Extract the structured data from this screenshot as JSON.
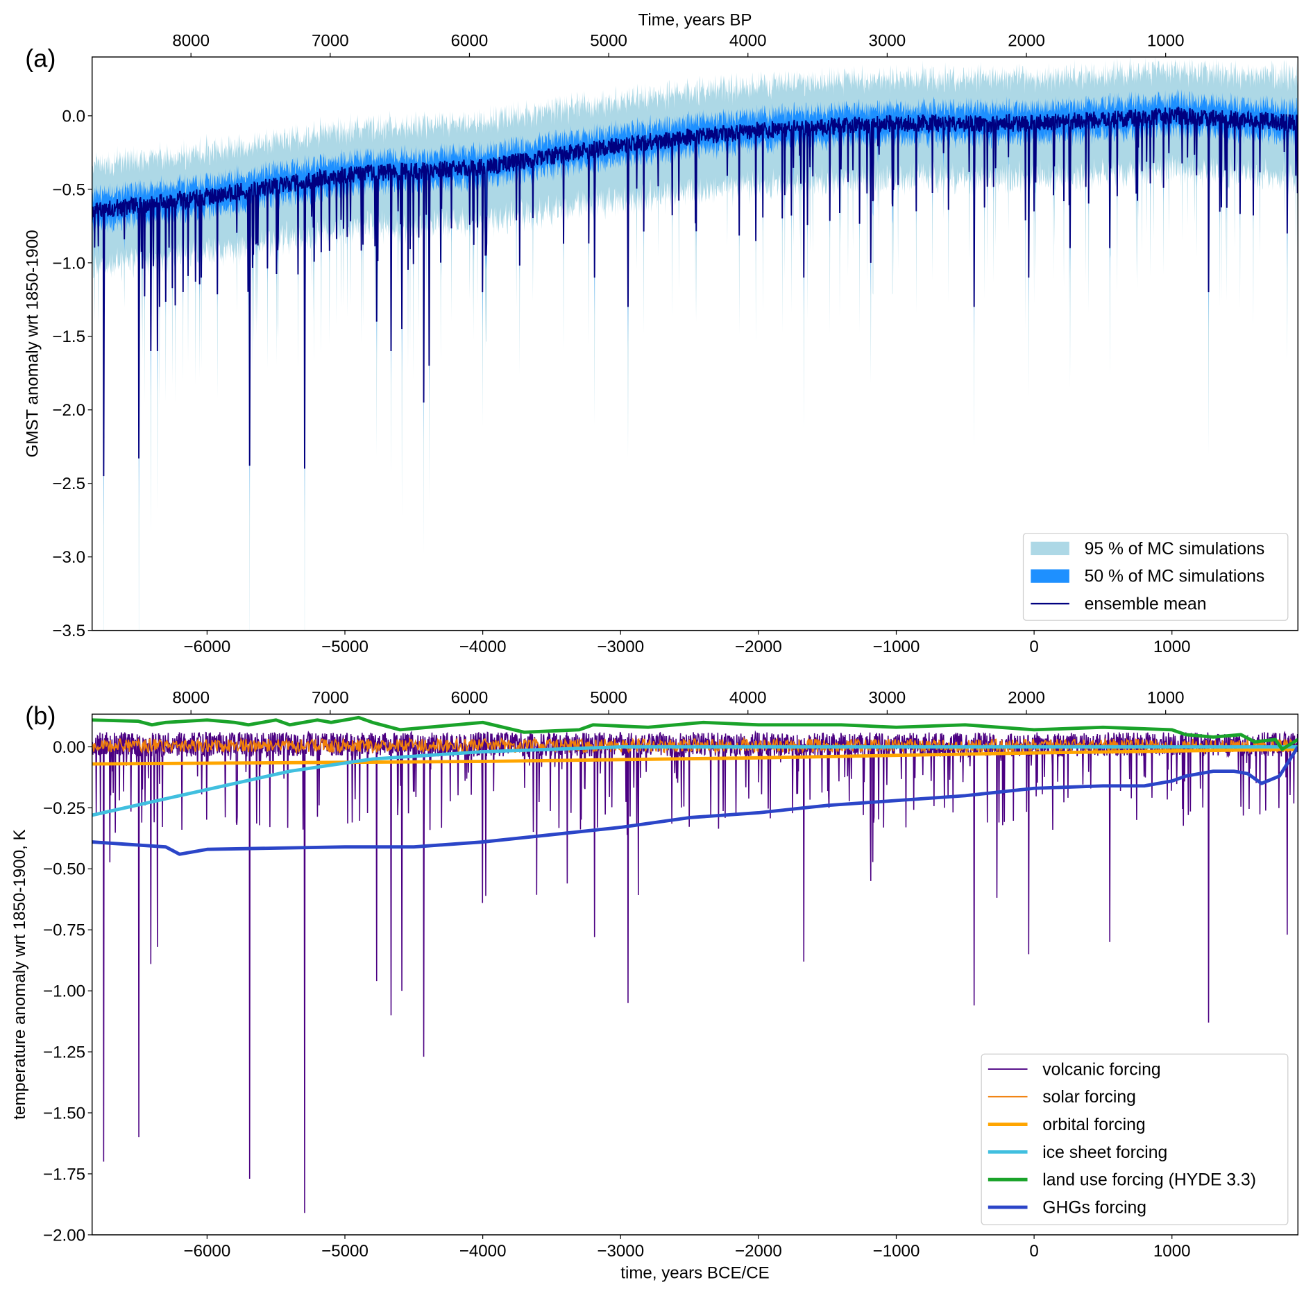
{
  "chart_data": [
    {
      "panel_label": "(a)",
      "type": "area",
      "top_xlabel": "Time, years BP",
      "xlabel": "",
      "ylabel": "GMST anomaly wrt 1850-1900",
      "xlim": [
        -6834,
        1914
      ],
      "xlim_bp": [
        8710,
        50
      ],
      "ylim": [
        -3.5,
        0.4
      ],
      "xticks": [
        -6000,
        -5000,
        -4000,
        -3000,
        -2000,
        -1000,
        0,
        1000
      ],
      "xticks_bp": [
        8000,
        7000,
        6000,
        5000,
        4000,
        3000,
        2000,
        1000
      ],
      "yticks": [
        0.0,
        -0.5,
        -1.0,
        -1.5,
        -2.0,
        -2.5,
        -3.0,
        -3.5
      ],
      "ytick_decimals": 1,
      "legend_position": "lower-right",
      "series": [
        {
          "name": "95 % of MC simulations",
          "kind": "band95",
          "color": "#add8e6",
          "half_width_upper": 0.3,
          "half_width_lower": 0.3
        },
        {
          "name": "50 % of MC simulations",
          "kind": "band50",
          "color": "#1e90ff",
          "half_width": 0.1
        },
        {
          "name": "ensemble mean",
          "kind": "line",
          "color": "#000080"
        }
      ],
      "mean_trend": {
        "x": [
          -6834,
          -6000,
          -5000,
          -4000,
          -3000,
          -2000,
          -1000,
          0,
          1000,
          1914
        ],
        "y": [
          -0.65,
          -0.55,
          -0.4,
          -0.35,
          -0.2,
          -0.1,
          -0.05,
          -0.05,
          0.0,
          -0.05
        ]
      },
      "major_dips": [
        {
          "year": -6750,
          "mean": -2.45,
          "low95": -3.5
        },
        {
          "year": -6495,
          "mean": -2.33,
          "low95": -3.45
        },
        {
          "year": -6410,
          "mean": -1.6,
          "low95": -2.45
        },
        {
          "year": -6360,
          "mean": -1.6,
          "low95": -2.3
        },
        {
          "year": -5693,
          "mean": -2.38,
          "low95": -3.4
        },
        {
          "year": -5292,
          "mean": -2.4,
          "low95": -3.5
        },
        {
          "year": -4770,
          "mean": -1.4,
          "low95": -1.9
        },
        {
          "year": -4666,
          "mean": -1.6,
          "low95": -2.15
        },
        {
          "year": -4587,
          "mean": -1.45,
          "low95": -2.35
        },
        {
          "year": -4430,
          "mean": -1.95,
          "low95": -2.57
        },
        {
          "year": -4390,
          "mean": -1.7,
          "low95": -2.2
        },
        {
          "year": -4003,
          "mean": -1.2,
          "low95": -1.8
        },
        {
          "year": -3190,
          "mean": -1.1,
          "low95": -1.68
        },
        {
          "year": -2947,
          "mean": -1.3,
          "low95": -2.0
        },
        {
          "year": -1671,
          "mean": -1.1,
          "low95": -1.77
        },
        {
          "year": -1185,
          "mean": -1.0,
          "low95": -1.5
        },
        {
          "year": -437,
          "mean": -1.3,
          "low95": -1.87
        },
        {
          "year": -40,
          "mean": -1.1,
          "low95": -1.57
        },
        {
          "year": 260,
          "mean": -0.9,
          "low95": -1.4
        },
        {
          "year": 547,
          "mean": -0.9,
          "low95": -1.4
        },
        {
          "year": 1264,
          "mean": -1.2,
          "low95": -1.87
        },
        {
          "year": 1835,
          "mean": -0.8,
          "low95": -1.3
        }
      ]
    },
    {
      "panel_label": "(b)",
      "type": "line",
      "top_xlabel": "",
      "xlabel": "time, years BCE/CE",
      "ylabel": "temperature anomaly wrt 1850-1900, K",
      "xlim": [
        -6834,
        1914
      ],
      "xlim_bp": [
        8710,
        50
      ],
      "ylim": [
        -2.0,
        0.134
      ],
      "xticks": [
        -6000,
        -5000,
        -4000,
        -3000,
        -2000,
        -1000,
        0,
        1000
      ],
      "xticks_bp": [
        8000,
        7000,
        6000,
        5000,
        4000,
        3000,
        2000,
        1000
      ],
      "yticks": [
        0.0,
        -0.25,
        -0.5,
        -0.75,
        -1.0,
        -1.25,
        -1.5,
        -1.75,
        -2.0
      ],
      "ytick_decimals": 2,
      "legend_position": "lower-right",
      "series": [
        {
          "name": "volcanic forcing",
          "color": "#4b0082",
          "width": 1.5,
          "dips": [
            {
              "year": -6750,
              "value": -1.7
            },
            {
              "year": -6495,
              "value": -1.6
            },
            {
              "year": -6410,
              "value": -0.89
            },
            {
              "year": -6360,
              "value": -0.82
            },
            {
              "year": -5693,
              "value": -1.77
            },
            {
              "year": -5292,
              "value": -1.91
            },
            {
              "year": -4770,
              "value": -0.96
            },
            {
              "year": -4666,
              "value": -1.1
            },
            {
              "year": -4587,
              "value": -1.0
            },
            {
              "year": -4430,
              "value": -1.27
            },
            {
              "year": -4003,
              "value": -0.64
            },
            {
              "year": -3190,
              "value": -0.78
            },
            {
              "year": -2947,
              "value": -1.05
            },
            {
              "year": -1671,
              "value": -0.88
            },
            {
              "year": -1185,
              "value": -0.55
            },
            {
              "year": -437,
              "value": -1.06
            },
            {
              "year": -40,
              "value": -0.85
            },
            {
              "year": 547,
              "value": -0.8
            },
            {
              "year": 1264,
              "value": -1.13
            },
            {
              "year": 1835,
              "value": -0.77
            }
          ]
        },
        {
          "name": "solar forcing",
          "color": "#f07f0a",
          "width": 1.5
        },
        {
          "name": "orbital forcing",
          "color": "#ffa500",
          "width": 4,
          "x": [
            -6834,
            -4000,
            -2000,
            0,
            1914
          ],
          "y": [
            -0.07,
            -0.06,
            -0.045,
            -0.025,
            -0.01
          ]
        },
        {
          "name": "ice sheet forcing",
          "color": "#40bfdf",
          "width": 4,
          "x": [
            -6834,
            -6200,
            -5400,
            -4800,
            -4000,
            -3000,
            1914
          ],
          "y": [
            -0.28,
            -0.2,
            -0.1,
            -0.05,
            -0.02,
            0.0,
            0.0
          ]
        },
        {
          "name": "land use forcing (HYDE 3.3)",
          "color": "#1aa32a",
          "width": 4,
          "x": [
            -6834,
            -6500,
            -6400,
            -6300,
            -6000,
            -5800,
            -5700,
            -5500,
            -5400,
            -5200,
            -5100,
            -4900,
            -4800,
            -4600,
            -4000,
            -3700,
            -3300,
            -3200,
            -2800,
            -2400,
            -2000,
            -1400,
            -1000,
            -500,
            0,
            500,
            1000,
            1100,
            1300,
            1500,
            1600,
            1750,
            1800,
            1914
          ],
          "y": [
            0.11,
            0.105,
            0.09,
            0.1,
            0.11,
            0.1,
            0.09,
            0.11,
            0.09,
            0.11,
            0.1,
            0.12,
            0.1,
            0.07,
            0.1,
            0.06,
            0.07,
            0.09,
            0.08,
            0.1,
            0.09,
            0.09,
            0.08,
            0.09,
            0.07,
            0.08,
            0.07,
            0.05,
            0.04,
            0.05,
            0.02,
            0.03,
            -0.01,
            0.03
          ]
        },
        {
          "name": "GHGs forcing",
          "color": "#2b45c8",
          "width": 4,
          "x": [
            -6834,
            -6300,
            -6200,
            -6000,
            -5000,
            -4500,
            -4000,
            -3500,
            -3000,
            -2500,
            -2000,
            -1500,
            -1000,
            -500,
            0,
            500,
            800,
            1000,
            1100,
            1300,
            1450,
            1550,
            1650,
            1780,
            1914
          ],
          "y": [
            -0.39,
            -0.41,
            -0.44,
            -0.42,
            -0.41,
            -0.41,
            -0.39,
            -0.36,
            -0.33,
            -0.29,
            -0.27,
            -0.24,
            -0.22,
            -0.2,
            -0.17,
            -0.16,
            -0.16,
            -0.14,
            -0.12,
            -0.1,
            -0.1,
            -0.11,
            -0.15,
            -0.12,
            0.0
          ]
        }
      ]
    }
  ]
}
